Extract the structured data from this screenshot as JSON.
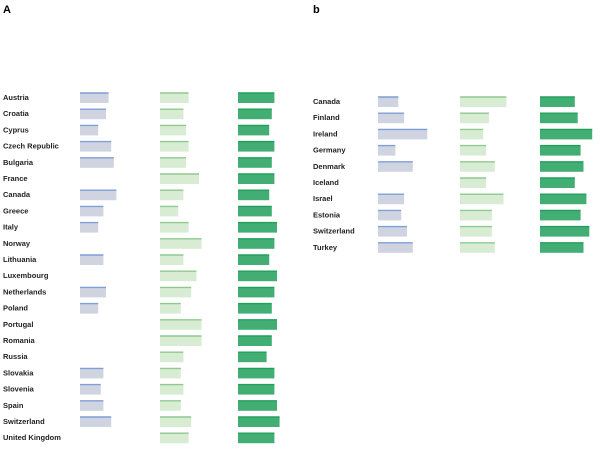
{
  "chart_data": [
    {
      "type": "table",
      "panel_label": "A",
      "columns": [
        {
          "header": "",
          "color": "#7f9fd8",
          "fill": "#cfd4e0"
        },
        {
          "header": "",
          "color": "#8fc98f",
          "fill": "#d7ecd2"
        },
        {
          "header": "",
          "color": "#22a05a",
          "fill": "#22a05a"
        }
      ],
      "rows": [
        {
          "label": "Austria",
          "values": [
            0.55,
            0.55,
            0.7
          ],
          "texts": [
            "",
            "",
            ""
          ]
        },
        {
          "label": "Croatia",
          "values": [
            0.5,
            0.45,
            0.65
          ],
          "texts": [
            "",
            "",
            ""
          ]
        },
        {
          "label": "Cyprus",
          "values": [
            0.35,
            0.5,
            0.6
          ],
          "texts": [
            "",
            "",
            ""
          ]
        },
        {
          "label": "Czech Republic",
          "values": [
            0.6,
            0.55,
            0.7
          ],
          "texts": [
            "",
            "",
            ""
          ]
        },
        {
          "label": "Bulgaria",
          "values": [
            0.65,
            0.5,
            0.65
          ],
          "texts": [
            "",
            "",
            ""
          ]
        },
        {
          "label": "France",
          "values": [
            null,
            0.75,
            0.7
          ],
          "texts": [
            "",
            "",
            ""
          ]
        },
        {
          "label": "Canada",
          "values": [
            0.7,
            0.45,
            0.6
          ],
          "texts": [
            "",
            "",
            ""
          ]
        },
        {
          "label": "Greece",
          "values": [
            0.45,
            0.35,
            0.65
          ],
          "texts": [
            "",
            "",
            ""
          ]
        },
        {
          "label": "Italy",
          "values": [
            0.35,
            0.55,
            0.75
          ],
          "texts": [
            "",
            "",
            ""
          ]
        },
        {
          "label": "Norway",
          "values": [
            null,
            0.8,
            0.7
          ],
          "texts": [
            "",
            "",
            ""
          ]
        },
        {
          "label": "Lithuania",
          "values": [
            0.45,
            0.45,
            0.6
          ],
          "texts": [
            "",
            "",
            ""
          ]
        },
        {
          "label": "Luxembourg",
          "values": [
            null,
            0.7,
            0.75
          ],
          "texts": [
            "",
            "",
            ""
          ]
        },
        {
          "label": "Netherlands",
          "values": [
            0.5,
            0.6,
            0.7
          ],
          "texts": [
            "",
            "",
            ""
          ]
        },
        {
          "label": "Poland",
          "values": [
            0.35,
            0.4,
            0.65
          ],
          "texts": [
            "",
            "",
            ""
          ]
        },
        {
          "label": "Portugal",
          "values": [
            null,
            0.8,
            0.75
          ],
          "texts": [
            "",
            "",
            ""
          ]
        },
        {
          "label": "Romania",
          "values": [
            null,
            0.8,
            0.65
          ],
          "texts": [
            "",
            "",
            ""
          ]
        },
        {
          "label": "Russia",
          "values": [
            null,
            0.45,
            0.55
          ],
          "texts": [
            "",
            "",
            ""
          ]
        },
        {
          "label": "Slovakia",
          "values": [
            0.45,
            0.4,
            0.7
          ],
          "texts": [
            "",
            "",
            ""
          ]
        },
        {
          "label": "Slovenia",
          "values": [
            0.4,
            0.45,
            0.7
          ],
          "texts": [
            "",
            "",
            ""
          ]
        },
        {
          "label": "Spain",
          "values": [
            0.45,
            0.4,
            0.75
          ],
          "texts": [
            "",
            "",
            ""
          ]
        },
        {
          "label": "Switzerland",
          "values": [
            0.6,
            0.6,
            0.8
          ],
          "texts": [
            "",
            "",
            ""
          ]
        },
        {
          "label": "United Kingdom",
          "values": [
            null,
            0.55,
            0.7
          ],
          "texts": [
            "",
            "",
            ""
          ]
        }
      ],
      "footer": ""
    },
    {
      "type": "table",
      "panel_label": "b",
      "columns": [
        {
          "header": "",
          "color": "#7f9fd8",
          "fill": "#cfd4e0"
        },
        {
          "header": "",
          "color": "#8fc98f",
          "fill": "#d7ecd2"
        },
        {
          "header": "",
          "color": "#22a05a",
          "fill": "#22a05a"
        }
      ],
      "rows": [
        {
          "label": "Canada",
          "values": [
            0.35,
            0.8,
            0.6
          ],
          "texts": [
            "",
            "",
            ""
          ]
        },
        {
          "label": "Finland",
          "values": [
            0.45,
            0.5,
            0.65
          ],
          "texts": [
            "",
            "",
            ""
          ]
        },
        {
          "label": "Ireland",
          "values": [
            0.85,
            0.4,
            0.9
          ],
          "texts": [
            "",
            "",
            ""
          ]
        },
        {
          "label": "Germany",
          "values": [
            0.3,
            0.45,
            0.7
          ],
          "texts": [
            "",
            "",
            ""
          ]
        },
        {
          "label": "Denmark",
          "values": [
            0.6,
            0.6,
            0.75
          ],
          "texts": [
            "",
            "",
            ""
          ]
        },
        {
          "label": "Iceland",
          "values": [
            null,
            0.45,
            0.6
          ],
          "texts": [
            "",
            "",
            ""
          ]
        },
        {
          "label": "Israel",
          "values": [
            0.45,
            0.75,
            0.8
          ],
          "texts": [
            "",
            "",
            ""
          ]
        },
        {
          "label": "Estonia",
          "values": [
            0.4,
            0.55,
            0.7
          ],
          "texts": [
            "",
            "",
            ""
          ]
        },
        {
          "label": "Switzerland",
          "values": [
            0.5,
            0.55,
            0.85
          ],
          "texts": [
            "",
            "",
            ""
          ]
        },
        {
          "label": "Turkey",
          "values": [
            0.6,
            0.6,
            0.75
          ],
          "texts": [
            "",
            "",
            ""
          ]
        }
      ],
      "footer": ""
    }
  ]
}
